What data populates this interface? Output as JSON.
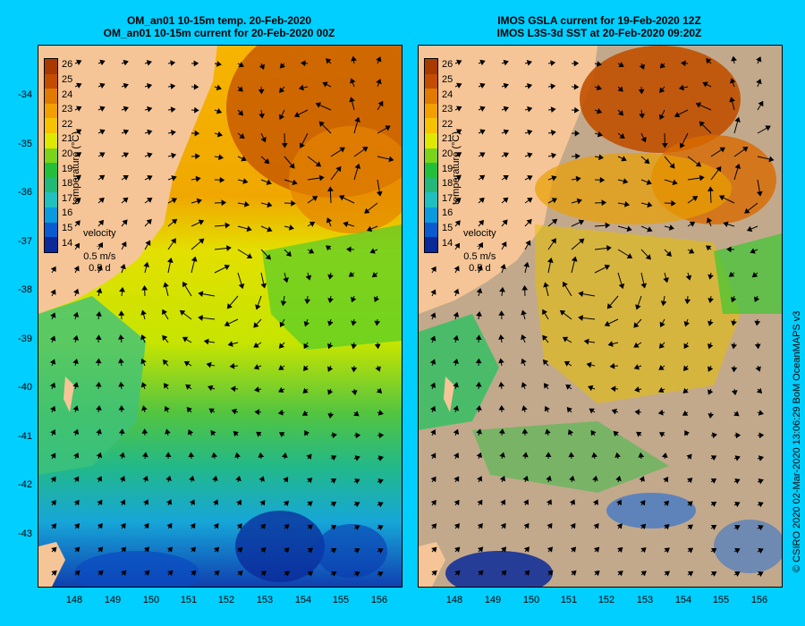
{
  "left_panel": {
    "title_line1": "OM_an01 10-15m temp. 20-Feb-2020",
    "title_line2": "OM_an01 10-15m current for 20-Feb-2020 00Z"
  },
  "right_panel": {
    "title_line1": "IMOS GSLA current for 19-Feb-2020 12Z",
    "title_line2": "IMOS L3S-3d SST at 20-Feb-2020 09:20Z"
  },
  "colorbar": {
    "title": "temperature (°C)",
    "ticks": [
      "26",
      "25",
      "24",
      "23",
      "22",
      "21",
      "20",
      "19",
      "18",
      "17",
      "16",
      "15",
      "14"
    ],
    "colors": [
      "#a83a00",
      "#c24d00",
      "#e07a00",
      "#f2a000",
      "#f7c300",
      "#dfe800",
      "#7ad41a",
      "#22c03a",
      "#22b87a",
      "#20c0c0",
      "#0a9ae0",
      "#0a5ad0",
      "#0a2a9a"
    ]
  },
  "velocity_key": {
    "label": "velocity",
    "speed": "0.5 m/s",
    "duration": "0.5 d"
  },
  "latitude_labels": [
    "-34",
    "-35",
    "-36",
    "-37",
    "-38",
    "-39",
    "-40",
    "-41",
    "-42",
    "-43"
  ],
  "longitude_labels": [
    "148",
    "149",
    "150",
    "151",
    "152",
    "153",
    "154",
    "155",
    "156"
  ],
  "credit": "© CSIRO 2020   02-Mar-2020 13:06:29 BoM OceanMAPS v3",
  "colors": {
    "background": "#00cfff",
    "land": "#f6c597",
    "cloud_mask": "#c2a98c"
  }
}
